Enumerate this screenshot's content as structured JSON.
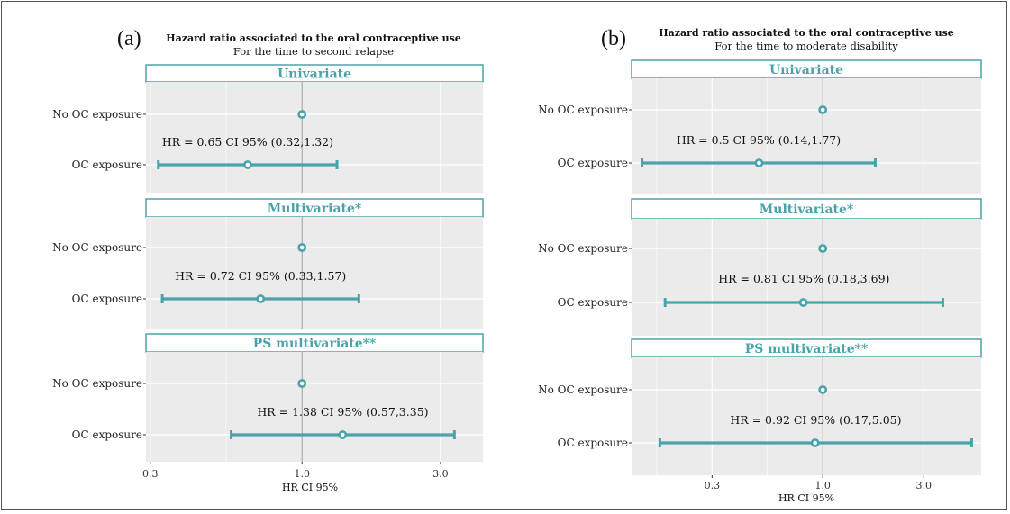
{
  "colors": {
    "accent": "#4aa3aa",
    "panel_bg": "#ebebeb",
    "grid": "#ffffff",
    "reference_line": "#999999"
  },
  "chart_data": [
    {
      "type": "forest",
      "panel_label": "(a)",
      "title": "Hazard ratio associated to the oral contraceptive use",
      "subtitle": "For the time to second relapse",
      "xlabel": "HR CI 95%",
      "x_scale": "log",
      "xlim": [
        0.29,
        4.2
      ],
      "x_ticks": [
        0.3,
        1.0,
        3.0
      ],
      "x_tick_labels": [
        "0.3",
        "1.0",
        "3.0"
      ],
      "reference_line": 1.0,
      "categories": [
        "No OC exposure",
        "OC exposure"
      ],
      "facets": [
        {
          "strip": "Univariate",
          "annotation": "HR = 0.65 CI 95% (0.32,1.32)",
          "rows": [
            {
              "category": "No OC exposure",
              "hr": 1.0
            },
            {
              "category": "OC exposure",
              "hr": 0.65,
              "lower": 0.32,
              "upper": 1.32
            }
          ]
        },
        {
          "strip": "Multivariate*",
          "annotation": "HR = 0.72 CI 95% (0.33,1.57)",
          "rows": [
            {
              "category": "No OC exposure",
              "hr": 1.0
            },
            {
              "category": "OC exposure",
              "hr": 0.72,
              "lower": 0.33,
              "upper": 1.57
            }
          ]
        },
        {
          "strip": "PS multivariate**",
          "annotation": "HR = 1.38 CI 95% (0.57,3.35)",
          "rows": [
            {
              "category": "No OC exposure",
              "hr": 1.0
            },
            {
              "category": "OC exposure",
              "hr": 1.38,
              "lower": 0.57,
              "upper": 3.35
            }
          ]
        }
      ]
    },
    {
      "type": "forest",
      "panel_label": "(b)",
      "title": "Hazard ratio associated to the oral contraceptive use",
      "subtitle": "For the time to moderate disability",
      "xlabel": "HR CI 95%",
      "x_scale": "log",
      "xlim": [
        0.125,
        5.6
      ],
      "x_ticks": [
        0.3,
        1.0,
        3.0
      ],
      "x_tick_labels": [
        "0.3",
        "1.0",
        "3.0"
      ],
      "reference_line": 1.0,
      "categories": [
        "No OC exposure",
        "OC exposure"
      ],
      "facets": [
        {
          "strip": "Univariate",
          "annotation": "HR = 0.5 CI 95% (0.14,1.77)",
          "rows": [
            {
              "category": "No OC exposure",
              "hr": 1.0
            },
            {
              "category": "OC exposure",
              "hr": 0.5,
              "lower": 0.14,
              "upper": 1.77
            }
          ]
        },
        {
          "strip": "Multivariate*",
          "annotation": "HR = 0.81 CI 95% (0.18,3.69)",
          "rows": [
            {
              "category": "No OC exposure",
              "hr": 1.0
            },
            {
              "category": "OC exposure",
              "hr": 0.81,
              "lower": 0.18,
              "upper": 3.69
            }
          ]
        },
        {
          "strip": "PS multivariate**",
          "annotation": "HR = 0.92 CI 95% (0.17,5.05)",
          "rows": [
            {
              "category": "No OC exposure",
              "hr": 1.0
            },
            {
              "category": "OC exposure",
              "hr": 0.92,
              "lower": 0.17,
              "upper": 5.05
            }
          ]
        }
      ]
    }
  ]
}
